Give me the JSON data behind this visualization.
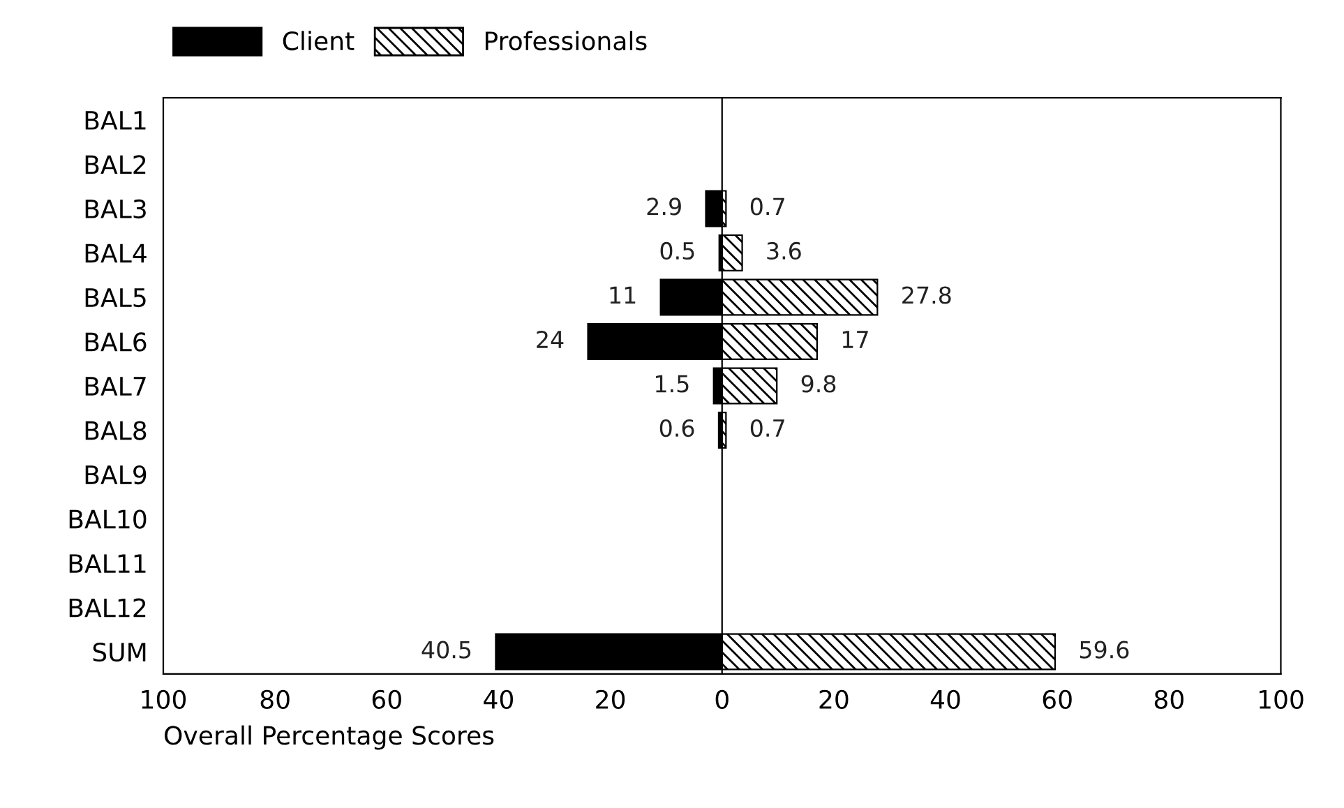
{
  "chart_data": [
    {
      "type": "bar",
      "orientation": "horizontal",
      "xlabel": "Overall Percentage Scores",
      "categories": [
        "BAL1",
        "BAL2",
        "BAL3",
        "BAL4",
        "BAL5",
        "BAL6",
        "BAL7",
        "BAL8",
        "BAL9",
        "BAL10",
        "BAL11",
        "BAL12",
        "SUM"
      ],
      "series": [
        {
          "name": "Client",
          "color": "#000000",
          "values": [
            null,
            null,
            2.9,
            0.5,
            11,
            24,
            1.5,
            0.6,
            null,
            null,
            null,
            null,
            40.5
          ]
        }
      ],
      "xlim": [
        100,
        0
      ],
      "xticks": [
        100,
        80,
        60,
        40,
        20
      ],
      "data_labels": true,
      "legend": "top left",
      "grid": false
    },
    {
      "type": "bar",
      "orientation": "horizontal",
      "categories": [
        null,
        null,
        null,
        null,
        null,
        null,
        null,
        null,
        null,
        null,
        null,
        null,
        null
      ],
      "series": [
        {
          "name": "Professionals",
          "color": "#000000",
          "values": [
            null,
            null,
            0.7,
            3.6,
            27.8,
            17,
            9.8,
            0.7,
            null,
            null,
            null,
            null,
            59.6
          ]
        }
      ],
      "xlim": [
        0,
        100
      ],
      "xticks": [
        0,
        20,
        40,
        60,
        80,
        100
      ],
      "tick_labels": "x",
      "data_labels": true,
      "legend": "top left",
      "grid": false
    }
  ]
}
